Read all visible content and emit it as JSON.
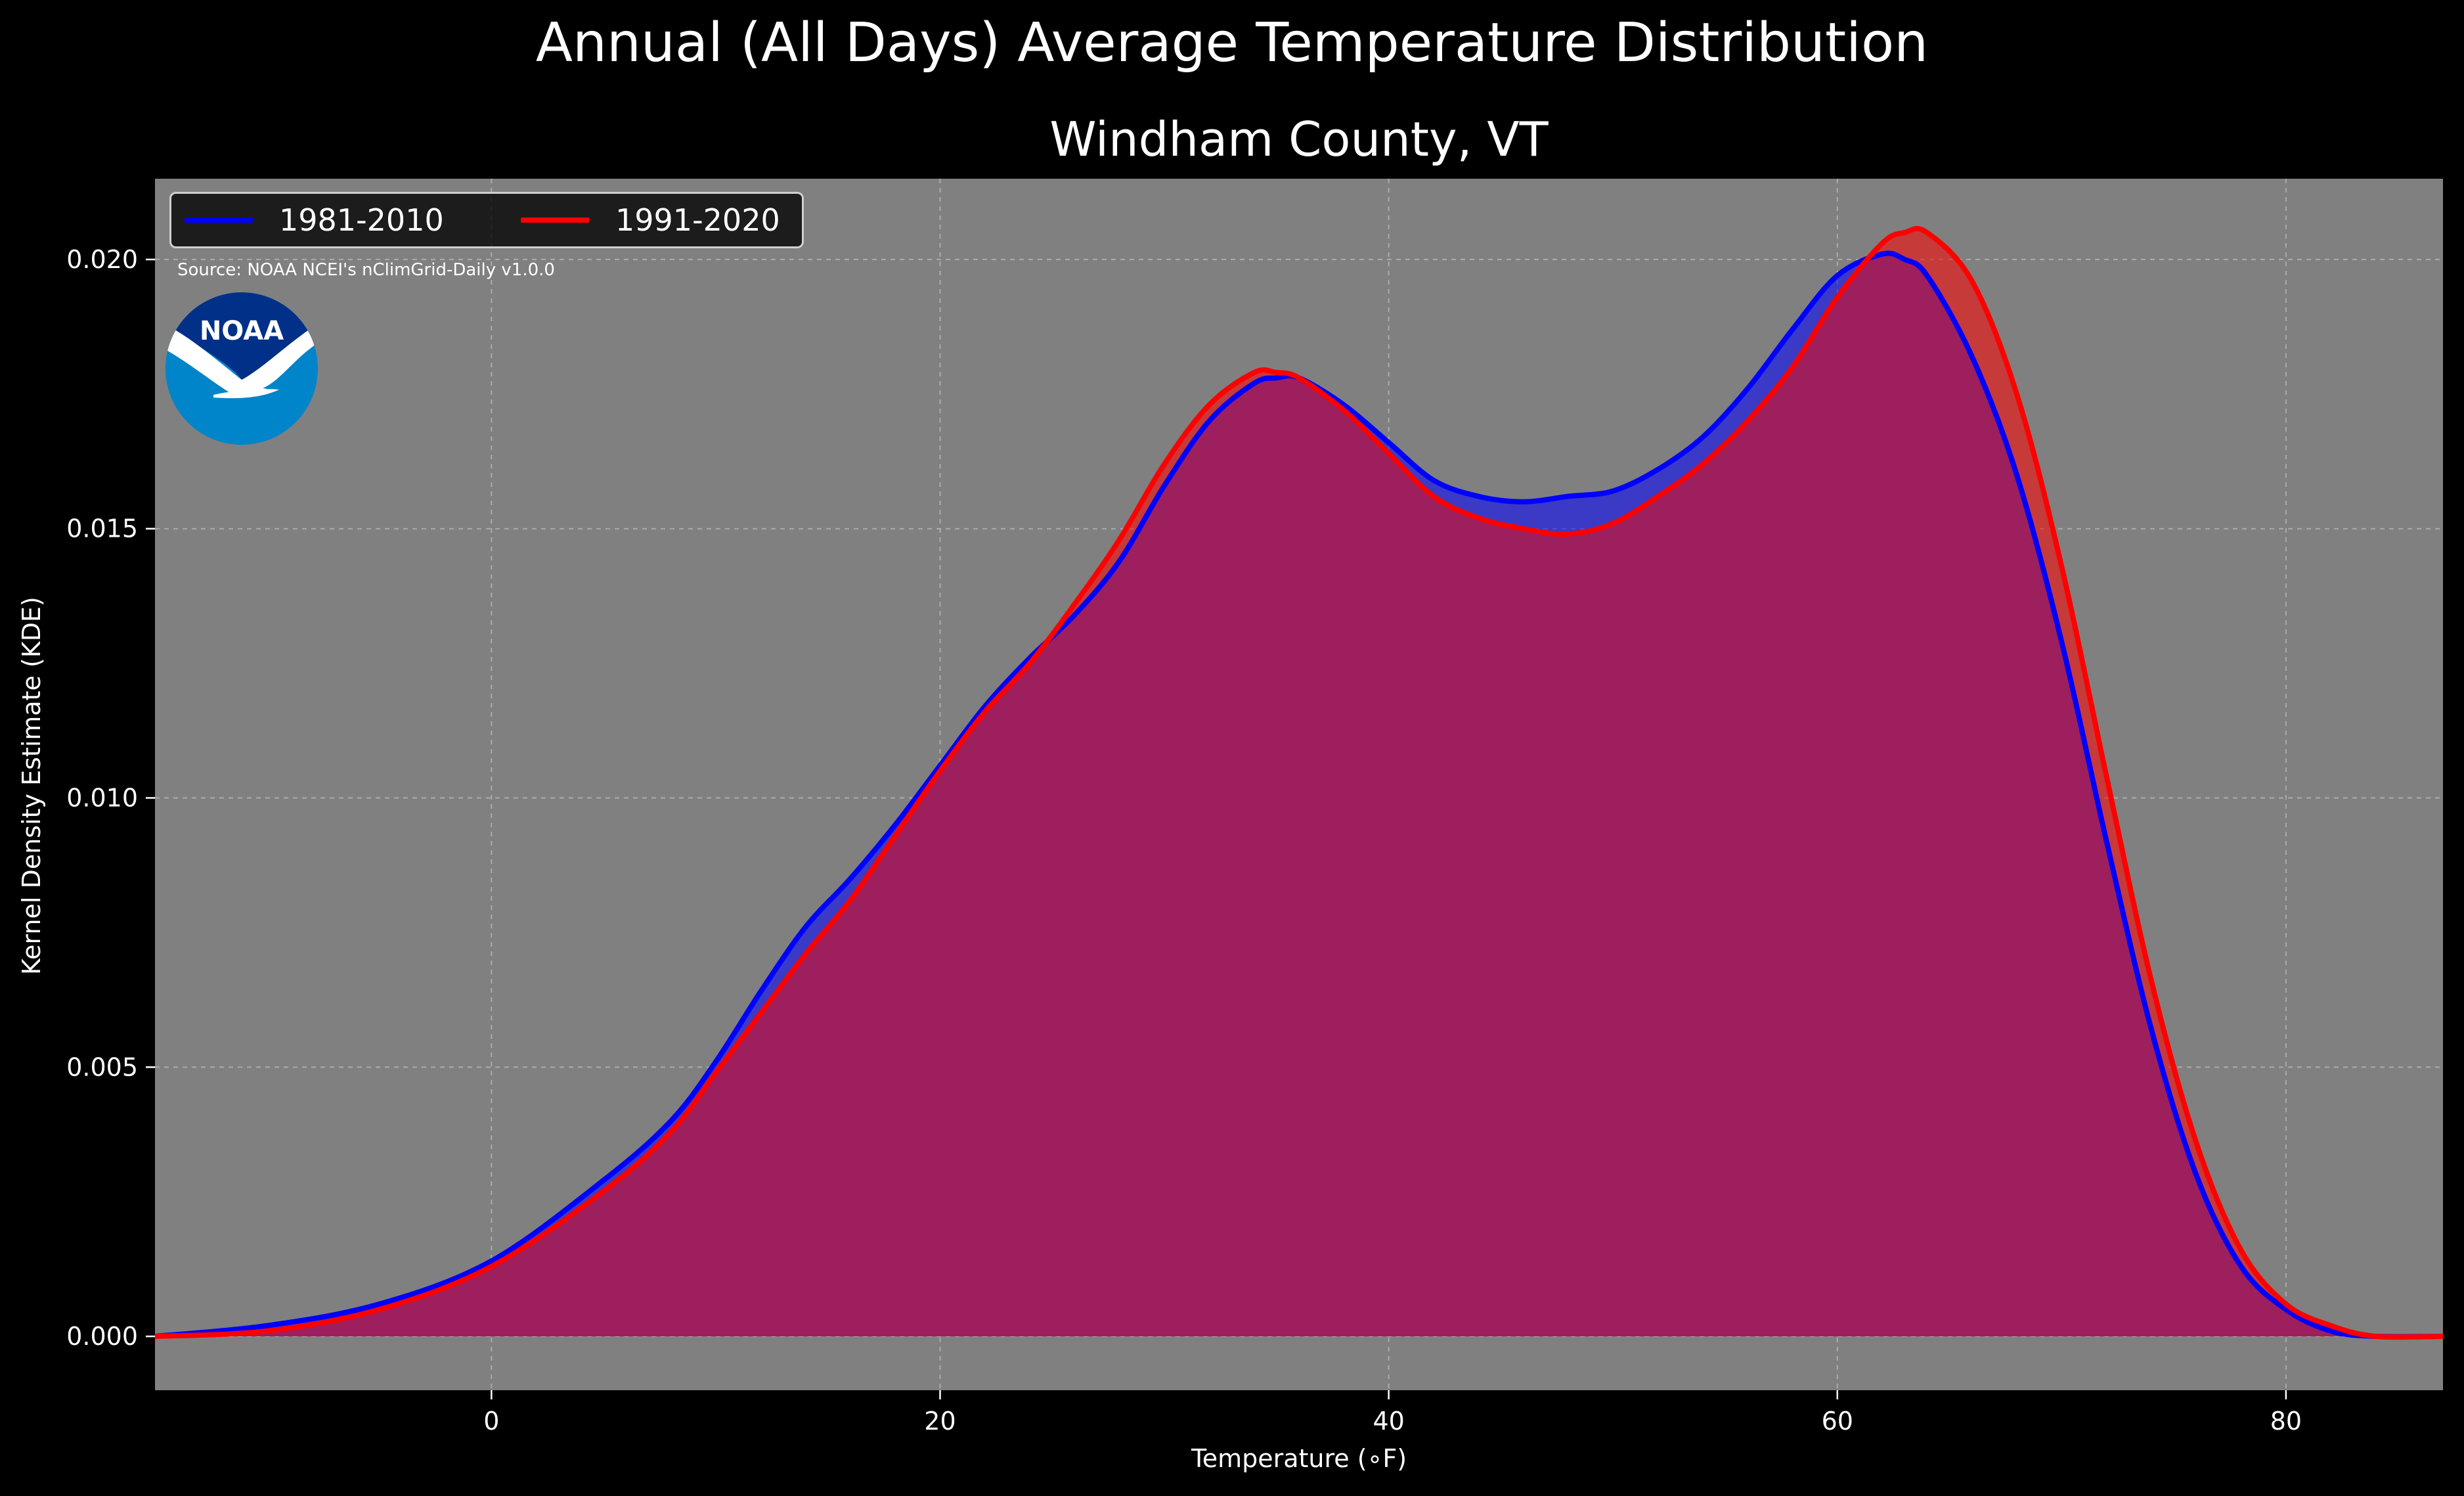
{
  "page": {
    "suptitle": "Annual (All Days) Average Temperature Distribution",
    "title": "Windham County, VT",
    "source": "Source: NOAA NCEI's nClimGrid-Daily v1.0.0",
    "logo_text": "NOAA",
    "xlabel": "Temperature (∘F)",
    "ylabel": "Kernel Density Estimate (KDE)"
  },
  "colors": {
    "figure_background": "#000000",
    "axes_background": "#808080",
    "series_1981": "#0000ff",
    "series_1991": "#ff0000",
    "overlap_fill": "#9e1f5e",
    "logo_outer": "#0085ca",
    "logo_inner": "#003087"
  },
  "chart_data": {
    "type": "area",
    "title": "Windham County, VT",
    "xlabel": "Temperature (∘F)",
    "ylabel": "Kernel Density Estimate (KDE)",
    "xlim": [
      -15,
      87
    ],
    "ylim": [
      -0.001,
      0.0215
    ],
    "xticks": [
      0,
      20,
      40,
      60,
      80
    ],
    "xtick_labels": [
      "0",
      "20",
      "40",
      "60",
      "80"
    ],
    "yticks": [
      0,
      0.005,
      0.01,
      0.015,
      0.02
    ],
    "ytick_labels": [
      "0.000",
      "0.005",
      "0.010",
      "0.015",
      "0.020"
    ],
    "grid": true,
    "legend": "top-left",
    "x": [
      -15,
      -10,
      -5,
      0,
      5,
      8,
      10,
      12,
      14,
      16,
      18,
      20,
      22,
      24,
      26,
      28,
      30,
      32,
      34,
      35,
      36,
      38,
      40,
      42,
      44,
      46,
      48,
      50,
      52,
      54,
      56,
      58,
      60,
      62,
      63,
      64,
      66,
      68,
      70,
      72,
      74,
      76,
      78,
      80,
      82,
      84,
      87
    ],
    "series": [
      {
        "name": "1981-2010",
        "values": [
          0.0,
          0.0002,
          0.0006,
          0.0014,
          0.0029,
          0.004,
          0.0051,
          0.0064,
          0.0076,
          0.0085,
          0.0095,
          0.0106,
          0.0117,
          0.0126,
          0.0134,
          0.0144,
          0.0158,
          0.017,
          0.0177,
          0.0178,
          0.0178,
          0.0173,
          0.0166,
          0.0159,
          0.0156,
          0.0155,
          0.0156,
          0.0157,
          0.0161,
          0.0167,
          0.0176,
          0.0187,
          0.0197,
          0.0201,
          0.02,
          0.0197,
          0.0182,
          0.016,
          0.0129,
          0.0092,
          0.0057,
          0.003,
          0.0013,
          0.0005,
          0.0001,
          0.0,
          0.0
        ]
      },
      {
        "name": "1991-2020",
        "values": [
          0.0,
          0.0001,
          0.0005,
          0.0013,
          0.0027,
          0.0038,
          0.0049,
          0.006,
          0.0071,
          0.0081,
          0.0093,
          0.0105,
          0.0116,
          0.0125,
          0.0136,
          0.0148,
          0.0162,
          0.0173,
          0.0179,
          0.0179,
          0.0178,
          0.0172,
          0.0164,
          0.0156,
          0.0152,
          0.015,
          0.0149,
          0.0151,
          0.0156,
          0.0162,
          0.017,
          0.018,
          0.0193,
          0.0203,
          0.0205,
          0.0205,
          0.0196,
          0.0175,
          0.0143,
          0.0104,
          0.0066,
          0.0036,
          0.0016,
          0.0006,
          0.0002,
          0.0,
          0.0
        ]
      }
    ]
  }
}
